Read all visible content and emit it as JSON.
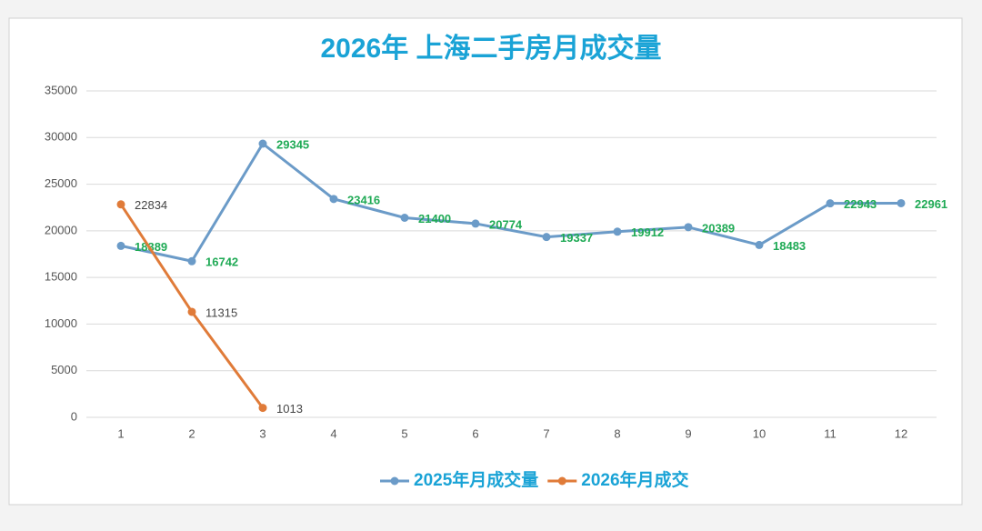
{
  "chart_data": {
    "type": "line",
    "title": "2026年 上海二手房月成交量",
    "categories": [
      1,
      2,
      3,
      4,
      5,
      6,
      7,
      8,
      9,
      10,
      11,
      12
    ],
    "series": [
      {
        "name": "2025年月成交量",
        "color": "#6b9bc8",
        "label_color": "#1faa55",
        "values": [
          18389,
          16742,
          29345,
          23416,
          21400,
          20774,
          19337,
          19912,
          20389,
          18483,
          22943,
          22961
        ]
      },
      {
        "name": "2026年月成交",
        "color": "#e07b39",
        "label_color": "#444444",
        "values": [
          22834,
          11315,
          1013,
          null,
          null,
          null,
          null,
          null,
          null,
          null,
          null,
          null
        ]
      }
    ],
    "ylim": [
      0,
      35000
    ],
    "yticks": [
      0,
      5000,
      10000,
      15000,
      20000,
      25000,
      30000,
      35000
    ],
    "grid": true,
    "legend": "bottom",
    "data_labels": true
  }
}
